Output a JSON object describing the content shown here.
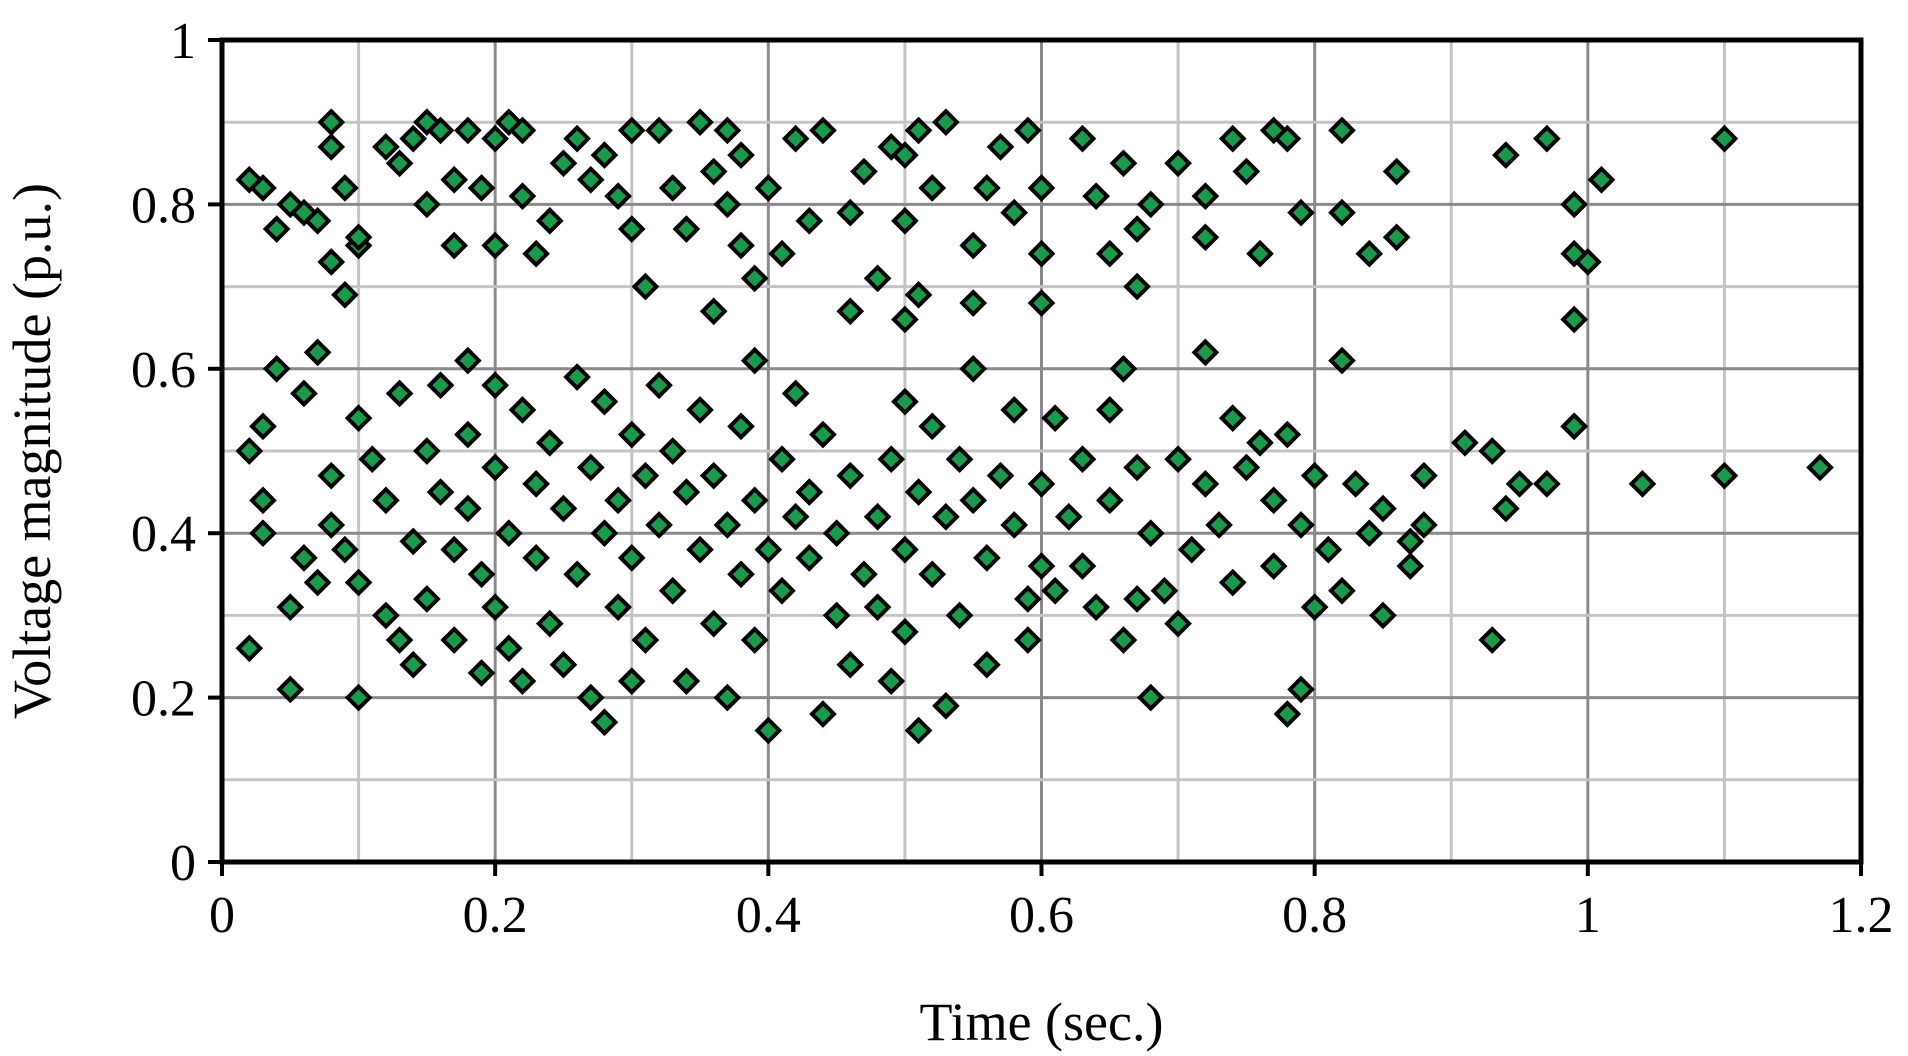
{
  "chart_data": {
    "type": "scatter",
    "title": "",
    "xlabel": "Time (sec.)",
    "ylabel": "Voltage magnitude (p.u.)",
    "xlim": [
      0,
      1.2
    ],
    "ylim": [
      0,
      1
    ],
    "x_ticks": [
      "0",
      "0.2",
      "0.4",
      "0.6",
      "0.8",
      "1",
      "1.2"
    ],
    "y_ticks": [
      "0",
      "0.2",
      "0.4",
      "0.6",
      "0.8",
      "1"
    ],
    "grid": true,
    "legend": "none",
    "marker": "diamond",
    "marker_color": "#1a9a4a",
    "marker_edge_color": "#000000",
    "series": [
      {
        "points": [
          [
            0.02,
            0.83
          ],
          [
            0.03,
            0.82
          ],
          [
            0.04,
            0.77
          ],
          [
            0.05,
            0.8
          ],
          [
            0.06,
            0.79
          ],
          [
            0.07,
            0.78
          ],
          [
            0.08,
            0.87
          ],
          [
            0.08,
            0.9
          ],
          [
            0.09,
            0.82
          ],
          [
            0.1,
            0.75
          ],
          [
            0.09,
            0.69
          ],
          [
            0.08,
            0.73
          ],
          [
            0.1,
            0.76
          ],
          [
            0.12,
            0.87
          ],
          [
            0.13,
            0.85
          ],
          [
            0.14,
            0.88
          ],
          [
            0.15,
            0.9
          ],
          [
            0.16,
            0.89
          ],
          [
            0.15,
            0.8
          ],
          [
            0.17,
            0.83
          ],
          [
            0.17,
            0.75
          ],
          [
            0.18,
            0.89
          ],
          [
            0.19,
            0.82
          ],
          [
            0.2,
            0.75
          ],
          [
            0.2,
            0.88
          ],
          [
            0.21,
            0.9
          ],
          [
            0.22,
            0.89
          ],
          [
            0.22,
            0.81
          ],
          [
            0.23,
            0.74
          ],
          [
            0.24,
            0.78
          ],
          [
            0.25,
            0.85
          ],
          [
            0.26,
            0.88
          ],
          [
            0.27,
            0.83
          ],
          [
            0.28,
            0.86
          ],
          [
            0.29,
            0.81
          ],
          [
            0.3,
            0.89
          ],
          [
            0.3,
            0.77
          ],
          [
            0.31,
            0.7
          ],
          [
            0.32,
            0.89
          ],
          [
            0.33,
            0.82
          ],
          [
            0.34,
            0.77
          ],
          [
            0.35,
            0.9
          ],
          [
            0.36,
            0.84
          ],
          [
            0.37,
            0.89
          ],
          [
            0.37,
            0.8
          ],
          [
            0.38,
            0.75
          ],
          [
            0.38,
            0.86
          ],
          [
            0.39,
            0.71
          ],
          [
            0.4,
            0.82
          ],
          [
            0.41,
            0.74
          ],
          [
            0.42,
            0.88
          ],
          [
            0.43,
            0.78
          ],
          [
            0.44,
            0.89
          ],
          [
            0.36,
            0.67
          ],
          [
            0.46,
            0.79
          ],
          [
            0.47,
            0.84
          ],
          [
            0.48,
            0.71
          ],
          [
            0.49,
            0.87
          ],
          [
            0.5,
            0.78
          ],
          [
            0.5,
            0.86
          ],
          [
            0.51,
            0.89
          ],
          [
            0.52,
            0.82
          ],
          [
            0.53,
            0.9
          ],
          [
            0.55,
            0.75
          ],
          [
            0.56,
            0.82
          ],
          [
            0.57,
            0.87
          ],
          [
            0.58,
            0.79
          ],
          [
            0.59,
            0.89
          ],
          [
            0.6,
            0.74
          ],
          [
            0.6,
            0.82
          ],
          [
            0.55,
            0.68
          ],
          [
            0.6,
            0.68
          ],
          [
            0.51,
            0.69
          ],
          [
            0.5,
            0.66
          ],
          [
            0.46,
            0.67
          ],
          [
            0.63,
            0.88
          ],
          [
            0.64,
            0.81
          ],
          [
            0.65,
            0.74
          ],
          [
            0.66,
            0.85
          ],
          [
            0.67,
            0.77
          ],
          [
            0.67,
            0.7
          ],
          [
            0.68,
            0.8
          ],
          [
            0.7,
            0.85
          ],
          [
            0.72,
            0.76
          ],
          [
            0.72,
            0.81
          ],
          [
            0.74,
            0.88
          ],
          [
            0.75,
            0.84
          ],
          [
            0.76,
            0.74
          ],
          [
            0.77,
            0.89
          ],
          [
            0.78,
            0.88
          ],
          [
            0.79,
            0.79
          ],
          [
            0.82,
            0.89
          ],
          [
            0.82,
            0.79
          ],
          [
            0.84,
            0.74
          ],
          [
            0.86,
            0.76
          ],
          [
            0.86,
            0.84
          ],
          [
            0.72,
            0.62
          ],
          [
            0.82,
            0.61
          ],
          [
            0.94,
            0.86
          ],
          [
            0.97,
            0.88
          ],
          [
            0.99,
            0.8
          ],
          [
            0.99,
            0.74
          ],
          [
            1.0,
            0.73
          ],
          [
            1.01,
            0.83
          ],
          [
            0.99,
            0.66
          ],
          [
            0.99,
            0.53
          ],
          [
            1.1,
            0.88
          ],
          [
            0.02,
            0.26
          ],
          [
            0.02,
            0.5
          ],
          [
            0.03,
            0.53
          ],
          [
            0.03,
            0.44
          ],
          [
            0.03,
            0.4
          ],
          [
            0.04,
            0.6
          ],
          [
            0.05,
            0.31
          ],
          [
            0.05,
            0.21
          ],
          [
            0.06,
            0.37
          ],
          [
            0.06,
            0.57
          ],
          [
            0.07,
            0.62
          ],
          [
            0.07,
            0.34
          ],
          [
            0.08,
            0.47
          ],
          [
            0.08,
            0.41
          ],
          [
            0.09,
            0.38
          ],
          [
            0.1,
            0.54
          ],
          [
            0.1,
            0.34
          ],
          [
            0.1,
            0.2
          ],
          [
            0.11,
            0.49
          ],
          [
            0.12,
            0.3
          ],
          [
            0.12,
            0.44
          ],
          [
            0.13,
            0.57
          ],
          [
            0.13,
            0.27
          ],
          [
            0.14,
            0.39
          ],
          [
            0.14,
            0.24
          ],
          [
            0.15,
            0.5
          ],
          [
            0.15,
            0.32
          ],
          [
            0.16,
            0.45
          ],
          [
            0.16,
            0.58
          ],
          [
            0.17,
            0.27
          ],
          [
            0.17,
            0.38
          ],
          [
            0.18,
            0.52
          ],
          [
            0.18,
            0.43
          ],
          [
            0.18,
            0.61
          ],
          [
            0.19,
            0.35
          ],
          [
            0.19,
            0.23
          ],
          [
            0.2,
            0.48
          ],
          [
            0.2,
            0.31
          ],
          [
            0.2,
            0.58
          ],
          [
            0.21,
            0.4
          ],
          [
            0.21,
            0.26
          ],
          [
            0.22,
            0.22
          ],
          [
            0.22,
            0.55
          ],
          [
            0.23,
            0.46
          ],
          [
            0.23,
            0.37
          ],
          [
            0.24,
            0.29
          ],
          [
            0.24,
            0.51
          ],
          [
            0.25,
            0.43
          ],
          [
            0.25,
            0.24
          ],
          [
            0.26,
            0.59
          ],
          [
            0.26,
            0.35
          ],
          [
            0.27,
            0.48
          ],
          [
            0.27,
            0.2
          ],
          [
            0.28,
            0.4
          ],
          [
            0.28,
            0.17
          ],
          [
            0.28,
            0.56
          ],
          [
            0.29,
            0.31
          ],
          [
            0.29,
            0.44
          ],
          [
            0.3,
            0.37
          ],
          [
            0.3,
            0.52
          ],
          [
            0.3,
            0.22
          ],
          [
            0.31,
            0.47
          ],
          [
            0.31,
            0.27
          ],
          [
            0.32,
            0.58
          ],
          [
            0.32,
            0.41
          ],
          [
            0.33,
            0.33
          ],
          [
            0.33,
            0.5
          ],
          [
            0.34,
            0.22
          ],
          [
            0.34,
            0.45
          ],
          [
            0.35,
            0.38
          ],
          [
            0.35,
            0.55
          ],
          [
            0.36,
            0.29
          ],
          [
            0.36,
            0.47
          ],
          [
            0.37,
            0.2
          ],
          [
            0.37,
            0.41
          ],
          [
            0.38,
            0.53
          ],
          [
            0.38,
            0.35
          ],
          [
            0.39,
            0.61
          ],
          [
            0.39,
            0.44
          ],
          [
            0.39,
            0.27
          ],
          [
            0.4,
            0.38
          ],
          [
            0.4,
            0.16
          ],
          [
            0.41,
            0.49
          ],
          [
            0.41,
            0.33
          ],
          [
            0.42,
            0.57
          ],
          [
            0.42,
            0.42
          ],
          [
            0.43,
            0.45
          ],
          [
            0.43,
            0.37
          ],
          [
            0.44,
            0.52
          ],
          [
            0.44,
            0.18
          ],
          [
            0.45,
            0.4
          ],
          [
            0.45,
            0.3
          ],
          [
            0.46,
            0.47
          ],
          [
            0.46,
            0.24
          ],
          [
            0.47,
            0.35
          ],
          [
            0.48,
            0.42
          ],
          [
            0.48,
            0.31
          ],
          [
            0.49,
            0.49
          ],
          [
            0.49,
            0.22
          ],
          [
            0.5,
            0.56
          ],
          [
            0.5,
            0.38
          ],
          [
            0.5,
            0.28
          ],
          [
            0.51,
            0.45
          ],
          [
            0.51,
            0.16
          ],
          [
            0.52,
            0.53
          ],
          [
            0.52,
            0.35
          ],
          [
            0.53,
            0.42
          ],
          [
            0.53,
            0.19
          ],
          [
            0.54,
            0.49
          ],
          [
            0.54,
            0.3
          ],
          [
            0.55,
            0.44
          ],
          [
            0.55,
            0.6
          ],
          [
            0.56,
            0.37
          ],
          [
            0.56,
            0.24
          ],
          [
            0.57,
            0.47
          ],
          [
            0.58,
            0.41
          ],
          [
            0.58,
            0.55
          ],
          [
            0.59,
            0.32
          ],
          [
            0.59,
            0.27
          ],
          [
            0.6,
            0.46
          ],
          [
            0.6,
            0.36
          ],
          [
            0.61,
            0.54
          ],
          [
            0.61,
            0.33
          ],
          [
            0.62,
            0.42
          ],
          [
            0.63,
            0.49
          ],
          [
            0.63,
            0.36
          ],
          [
            0.64,
            0.31
          ],
          [
            0.65,
            0.44
          ],
          [
            0.65,
            0.55
          ],
          [
            0.66,
            0.27
          ],
          [
            0.66,
            0.6
          ],
          [
            0.67,
            0.48
          ],
          [
            0.67,
            0.32
          ],
          [
            0.68,
            0.2
          ],
          [
            0.68,
            0.4
          ],
          [
            0.69,
            0.33
          ],
          [
            0.7,
            0.49
          ],
          [
            0.7,
            0.29
          ],
          [
            0.71,
            0.38
          ],
          [
            0.72,
            0.46
          ],
          [
            0.73,
            0.41
          ],
          [
            0.74,
            0.54
          ],
          [
            0.74,
            0.34
          ],
          [
            0.75,
            0.48
          ],
          [
            0.76,
            0.51
          ],
          [
            0.77,
            0.44
          ],
          [
            0.77,
            0.36
          ],
          [
            0.78,
            0.52
          ],
          [
            0.78,
            0.18
          ],
          [
            0.79,
            0.21
          ],
          [
            0.79,
            0.41
          ],
          [
            0.8,
            0.31
          ],
          [
            0.8,
            0.47
          ],
          [
            0.81,
            0.38
          ],
          [
            0.82,
            0.33
          ],
          [
            0.83,
            0.46
          ],
          [
            0.84,
            0.4
          ],
          [
            0.85,
            0.43
          ],
          [
            0.85,
            0.3
          ],
          [
            0.87,
            0.36
          ],
          [
            0.87,
            0.39
          ],
          [
            0.88,
            0.47
          ],
          [
            0.88,
            0.41
          ],
          [
            0.91,
            0.51
          ],
          [
            0.93,
            0.27
          ],
          [
            0.93,
            0.5
          ],
          [
            0.94,
            0.43
          ],
          [
            0.95,
            0.46
          ],
          [
            0.97,
            0.46
          ],
          [
            0.99,
            0.53
          ],
          [
            1.04,
            0.46
          ],
          [
            1.1,
            0.47
          ],
          [
            1.17,
            0.48
          ]
        ]
      }
    ]
  }
}
